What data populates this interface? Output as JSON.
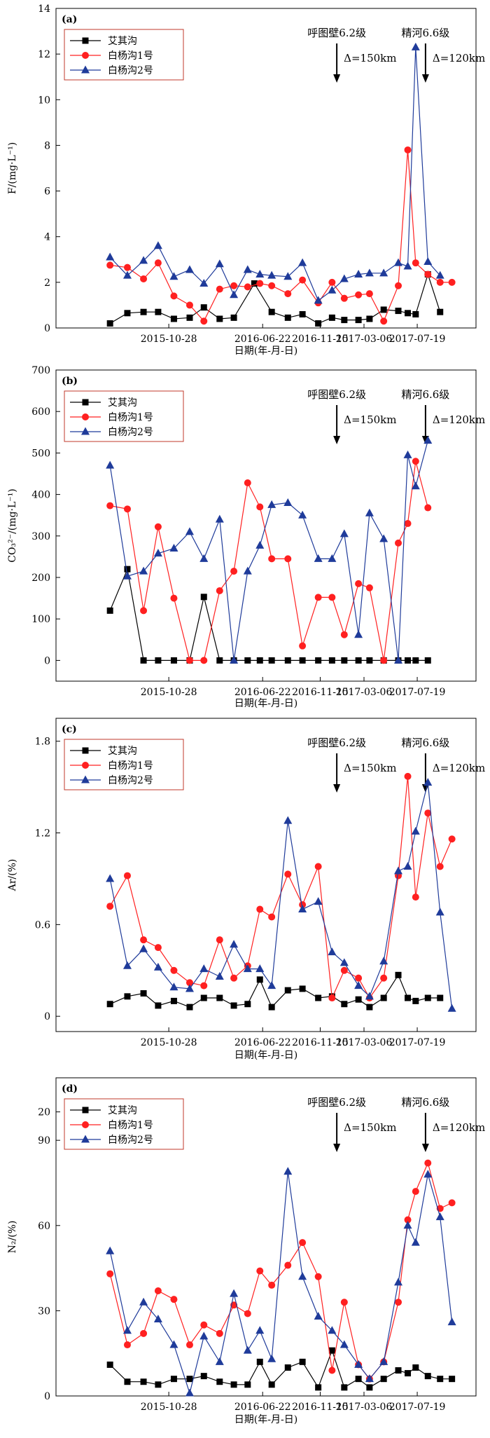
{
  "colors": {
    "s0": "#000000",
    "s1": "#ff2020",
    "s2": "#1f3b9a",
    "legend_border": "#c0392b"
  },
  "xticks": [
    {
      "date": "2015-10-28",
      "label": "2015-10-28"
    },
    {
      "date": "2016-06-22",
      "label": "2016-06-22"
    },
    {
      "date": "2016-11-15",
      "label": "2016-11-15"
    },
    {
      "date": "2017-03-06",
      "label": "2017-03-06"
    },
    {
      "date": "2017-07-19",
      "label": "2017-07-19"
    }
  ],
  "chart_data": [
    {
      "type": "line",
      "panel": "(a)",
      "xlabel": "日期(年-月-日)",
      "ylabel": "F/(mg·L⁻¹)",
      "ylim": [
        0,
        14
      ],
      "yticks": [
        0,
        2,
        4,
        6,
        8,
        10,
        12,
        14
      ],
      "legend": "top-left",
      "annotations": [
        {
          "title": "呼图壁6.2级",
          "delta": "Δ=150km",
          "date": "2016-12-27"
        },
        {
          "title": "精河6.6级",
          "delta": "Δ=120km",
          "date": "2017-08-09"
        }
      ],
      "series": [
        {
          "name": "艾其沟",
          "marker": "square",
          "x": [
            "2015-06-01",
            "2015-07-15",
            "2015-08-25",
            "2015-10-01",
            "2015-11-10",
            "2015-12-20",
            "2016-01-25",
            "2016-03-05",
            "2016-04-10",
            "2016-06-01",
            "2016-07-15",
            "2016-08-25",
            "2016-10-01",
            "2016-11-10",
            "2016-12-15",
            "2017-01-15",
            "2017-02-20",
            "2017-03-20",
            "2017-04-25",
            "2017-06-01",
            "2017-06-25",
            "2017-07-15",
            "2017-08-15",
            "2017-09-15"
          ],
          "y": [
            0.2,
            0.65,
            0.7,
            0.7,
            0.4,
            0.45,
            0.9,
            0.4,
            0.45,
            1.95,
            0.7,
            0.45,
            0.6,
            0.2,
            0.45,
            0.35,
            0.35,
            0.4,
            0.8,
            0.75,
            0.65,
            0.6,
            2.35,
            0.7
          ]
        },
        {
          "name": "白杨沟1号",
          "marker": "circle",
          "x": [
            "2015-06-01",
            "2015-07-15",
            "2015-08-25",
            "2015-10-01",
            "2015-11-10",
            "2015-12-20",
            "2016-01-25",
            "2016-03-05",
            "2016-04-10",
            "2016-05-15",
            "2016-06-15",
            "2016-07-15",
            "2016-08-25",
            "2016-10-01",
            "2016-11-10",
            "2016-12-15",
            "2017-01-15",
            "2017-02-20",
            "2017-03-20",
            "2017-04-25",
            "2017-06-01",
            "2017-06-25",
            "2017-07-15",
            "2017-08-15",
            "2017-09-15",
            "2017-10-15"
          ],
          "y": [
            2.75,
            2.65,
            2.15,
            2.85,
            1.4,
            1.0,
            0.3,
            1.7,
            1.85,
            1.8,
            1.95,
            1.85,
            1.5,
            2.1,
            1.1,
            2.0,
            1.3,
            1.45,
            1.5,
            0.3,
            1.85,
            7.8,
            2.85,
            2.35,
            2.0,
            2.0
          ]
        },
        {
          "name": "白杨沟2号",
          "marker": "triangle",
          "x": [
            "2015-06-01",
            "2015-07-15",
            "2015-08-25",
            "2015-10-01",
            "2015-11-10",
            "2015-12-20",
            "2016-01-25",
            "2016-03-05",
            "2016-04-10",
            "2016-05-15",
            "2016-06-15",
            "2016-07-15",
            "2016-08-25",
            "2016-10-01",
            "2016-11-10",
            "2016-12-15",
            "2017-01-15",
            "2017-02-20",
            "2017-03-20",
            "2017-04-25",
            "2017-06-01",
            "2017-06-25",
            "2017-07-15",
            "2017-08-15",
            "2017-09-15"
          ],
          "y": [
            3.1,
            2.3,
            2.95,
            3.6,
            2.25,
            2.55,
            1.95,
            2.8,
            1.45,
            2.55,
            2.35,
            2.3,
            2.25,
            2.85,
            1.2,
            1.65,
            2.15,
            2.35,
            2.4,
            2.4,
            2.85,
            2.7,
            12.3,
            2.9,
            2.3
          ]
        }
      ]
    },
    {
      "type": "line",
      "panel": "(b)",
      "xlabel": "日期(年-月-日)",
      "ylabel": "CO₃²⁻/(mg·L⁻¹)",
      "ylim": [
        -50,
        700
      ],
      "yticks": [
        0,
        100,
        200,
        300,
        400,
        500,
        600,
        700
      ],
      "legend": "top-left",
      "annotations": [
        {
          "title": "呼图壁6.2级",
          "delta": "Δ=150km",
          "date": "2016-12-27"
        },
        {
          "title": "精河6.6级",
          "delta": "Δ=120km",
          "date": "2017-08-09"
        }
      ],
      "series": [
        {
          "name": "艾其沟",
          "marker": "square",
          "x": [
            "2015-06-01",
            "2015-07-15",
            "2015-08-25",
            "2015-10-01",
            "2015-11-10",
            "2015-12-20",
            "2016-01-25",
            "2016-03-05",
            "2016-04-10",
            "2016-05-15",
            "2016-06-15",
            "2016-07-15",
            "2016-08-25",
            "2016-10-01",
            "2016-11-10",
            "2016-12-15",
            "2017-01-15",
            "2017-02-20",
            "2017-03-20",
            "2017-04-25",
            "2017-06-01",
            "2017-06-25",
            "2017-07-15",
            "2017-08-15"
          ],
          "y": [
            120,
            220,
            0,
            0,
            0,
            0,
            153,
            0,
            0,
            0,
            0,
            0,
            0,
            0,
            0,
            0,
            0,
            0,
            0,
            0,
            0,
            0,
            0,
            0
          ]
        },
        {
          "name": "白杨沟1号",
          "marker": "circle",
          "x": [
            "2015-06-01",
            "2015-07-15",
            "2015-08-25",
            "2015-10-01",
            "2015-11-10",
            "2015-12-20",
            "2016-01-25",
            "2016-03-05",
            "2016-04-10",
            "2016-05-15",
            "2016-06-15",
            "2016-07-15",
            "2016-08-25",
            "2016-10-01",
            "2016-11-10",
            "2016-12-15",
            "2017-01-15",
            "2017-02-20",
            "2017-03-20",
            "2017-04-25",
            "2017-06-01",
            "2017-06-25",
            "2017-07-15",
            "2017-08-15"
          ],
          "y": [
            373,
            365,
            120,
            322,
            150,
            0,
            0,
            168,
            215,
            428,
            370,
            245,
            245,
            35,
            152,
            152,
            62,
            185,
            175,
            0,
            283,
            330,
            480,
            368
          ]
        },
        {
          "name": "白杨沟2号",
          "marker": "triangle",
          "x": [
            "2015-06-01",
            "2015-07-15",
            "2015-08-25",
            "2015-10-01",
            "2015-11-10",
            "2015-12-20",
            "2016-01-25",
            "2016-03-05",
            "2016-04-10",
            "2016-05-15",
            "2016-06-15",
            "2016-07-15",
            "2016-08-25",
            "2016-10-01",
            "2016-11-10",
            "2016-12-15",
            "2017-01-15",
            "2017-02-20",
            "2017-03-20",
            "2017-04-25",
            "2017-06-01",
            "2017-06-25",
            "2017-07-15",
            "2017-08-15"
          ],
          "y": [
            470,
            203,
            215,
            258,
            270,
            310,
            245,
            340,
            0,
            215,
            277,
            375,
            380,
            350,
            245,
            245,
            305,
            62,
            355,
            293,
            0,
            495,
            420,
            530
          ]
        }
      ]
    },
    {
      "type": "line",
      "panel": "(c)",
      "xlabel": "日期(年-月-日)",
      "ylabel": "Ar/(%)",
      "ylim": [
        -0.1,
        1.95
      ],
      "yticks": [
        0,
        0.6,
        1.2,
        1.8
      ],
      "legend": "top-left",
      "annotations": [
        {
          "title": "呼图壁6.2级",
          "delta": "Δ=150km",
          "date": "2016-12-27"
        },
        {
          "title": "精河6.6级",
          "delta": "Δ=120km",
          "date": "2017-08-09"
        }
      ],
      "series": [
        {
          "name": "艾其沟",
          "marker": "square",
          "x": [
            "2015-06-01",
            "2015-07-15",
            "2015-08-25",
            "2015-10-01",
            "2015-11-10",
            "2015-12-20",
            "2016-01-25",
            "2016-03-05",
            "2016-04-10",
            "2016-05-15",
            "2016-06-15",
            "2016-07-15",
            "2016-08-25",
            "2016-10-01",
            "2016-11-10",
            "2016-12-15",
            "2017-01-15",
            "2017-02-20",
            "2017-03-20",
            "2017-04-25",
            "2017-06-01",
            "2017-06-25",
            "2017-07-15",
            "2017-08-15",
            "2017-09-15"
          ],
          "y": [
            0.08,
            0.13,
            0.15,
            0.07,
            0.1,
            0.06,
            0.12,
            0.12,
            0.07,
            0.08,
            0.24,
            0.06,
            0.17,
            0.18,
            0.12,
            0.13,
            0.08,
            0.11,
            0.06,
            0.12,
            0.27,
            0.12,
            0.1,
            0.12,
            0.12
          ]
        },
        {
          "name": "白杨沟1号",
          "marker": "circle",
          "x": [
            "2015-06-01",
            "2015-07-15",
            "2015-08-25",
            "2015-10-01",
            "2015-11-10",
            "2015-12-20",
            "2016-01-25",
            "2016-03-05",
            "2016-04-10",
            "2016-05-15",
            "2016-06-15",
            "2016-07-15",
            "2016-08-25",
            "2016-10-01",
            "2016-11-10",
            "2016-12-15",
            "2017-01-15",
            "2017-02-20",
            "2017-03-20",
            "2017-04-25",
            "2017-06-01",
            "2017-06-25",
            "2017-07-15",
            "2017-08-15",
            "2017-09-15",
            "2017-10-15"
          ],
          "y": [
            0.72,
            0.92,
            0.5,
            0.45,
            0.3,
            0.22,
            0.2,
            0.5,
            0.25,
            0.33,
            0.7,
            0.65,
            0.93,
            0.73,
            0.98,
            0.12,
            0.3,
            0.25,
            0.12,
            0.25,
            0.92,
            1.57,
            0.78,
            1.33,
            0.98,
            1.16
          ]
        },
        {
          "name": "白杨沟2号",
          "marker": "triangle",
          "x": [
            "2015-06-01",
            "2015-07-15",
            "2015-08-25",
            "2015-10-01",
            "2015-11-10",
            "2015-12-20",
            "2016-01-25",
            "2016-03-05",
            "2016-04-10",
            "2016-05-15",
            "2016-06-15",
            "2016-07-15",
            "2016-08-25",
            "2016-10-01",
            "2016-11-10",
            "2016-12-15",
            "2017-01-15",
            "2017-02-20",
            "2017-03-20",
            "2017-04-25",
            "2017-06-01",
            "2017-06-25",
            "2017-07-15",
            "2017-08-15",
            "2017-09-15",
            "2017-10-15"
          ],
          "y": [
            0.9,
            0.33,
            0.44,
            0.32,
            0.19,
            0.18,
            0.31,
            0.26,
            0.47,
            0.31,
            0.31,
            0.2,
            1.28,
            0.7,
            0.75,
            0.42,
            0.35,
            0.2,
            0.13,
            0.36,
            0.95,
            0.98,
            1.21,
            1.53,
            0.68,
            0.05
          ]
        }
      ]
    },
    {
      "type": "line",
      "panel": "(d)",
      "xlabel": "日期(年-月-日)",
      "ylabel": "N₂/(%)",
      "ylim": [
        0,
        112
      ],
      "yticks": [
        0,
        30,
        60,
        90
      ],
      "ytick_extra": {
        "value": 100,
        "label": "20"
      },
      "legend": "top-left",
      "annotations": [
        {
          "title": "呼图壁6.2级",
          "delta": "Δ=150km",
          "date": "2016-12-27"
        },
        {
          "title": "精河6.6级",
          "delta": "Δ=120km",
          "date": "2017-08-09"
        }
      ],
      "series": [
        {
          "name": "艾其沟",
          "marker": "square",
          "x": [
            "2015-06-01",
            "2015-07-15",
            "2015-08-25",
            "2015-10-01",
            "2015-11-10",
            "2015-12-20",
            "2016-01-25",
            "2016-03-05",
            "2016-04-10",
            "2016-05-15",
            "2016-06-15",
            "2016-07-15",
            "2016-08-25",
            "2016-10-01",
            "2016-11-10",
            "2016-12-15",
            "2017-01-15",
            "2017-02-20",
            "2017-03-20",
            "2017-04-25",
            "2017-06-01",
            "2017-06-25",
            "2017-07-15",
            "2017-08-15",
            "2017-09-15",
            "2017-10-15"
          ],
          "y": [
            11,
            5,
            5,
            4,
            6,
            6,
            7,
            5,
            4,
            4,
            12,
            4,
            10,
            12,
            3,
            16,
            3,
            6,
            3,
            6,
            9,
            8,
            10,
            7,
            6,
            6
          ]
        },
        {
          "name": "白杨沟1号",
          "marker": "circle",
          "x": [
            "2015-06-01",
            "2015-07-15",
            "2015-08-25",
            "2015-10-01",
            "2015-11-10",
            "2015-12-20",
            "2016-01-25",
            "2016-03-05",
            "2016-04-10",
            "2016-05-15",
            "2016-06-15",
            "2016-07-15",
            "2016-08-25",
            "2016-10-01",
            "2016-11-10",
            "2016-12-15",
            "2017-01-15",
            "2017-02-20",
            "2017-03-20",
            "2017-04-25",
            "2017-06-01",
            "2017-06-25",
            "2017-07-15",
            "2017-08-15",
            "2017-09-15",
            "2017-10-15"
          ],
          "y": [
            43,
            18,
            22,
            37,
            34,
            18,
            25,
            22,
            32,
            29,
            44,
            39,
            46,
            54,
            42,
            9,
            33,
            11,
            6,
            12,
            33,
            62,
            72,
            82,
            66,
            68
          ]
        },
        {
          "name": "白杨沟2号",
          "marker": "triangle",
          "x": [
            "2015-06-01",
            "2015-07-15",
            "2015-08-25",
            "2015-10-01",
            "2015-11-10",
            "2015-12-20",
            "2016-01-25",
            "2016-03-05",
            "2016-04-10",
            "2016-05-15",
            "2016-06-15",
            "2016-07-15",
            "2016-08-25",
            "2016-10-01",
            "2016-11-10",
            "2016-12-15",
            "2017-01-15",
            "2017-02-20",
            "2017-03-20",
            "2017-04-25",
            "2017-06-01",
            "2017-06-25",
            "2017-07-15",
            "2017-08-15",
            "2017-09-15",
            "2017-10-15"
          ],
          "y": [
            51,
            23,
            33,
            27,
            18,
            1,
            21,
            12,
            36,
            16,
            23,
            13,
            79,
            42,
            28,
            23,
            18,
            11,
            6,
            12,
            40,
            60,
            54,
            78,
            63,
            26
          ]
        }
      ]
    }
  ]
}
